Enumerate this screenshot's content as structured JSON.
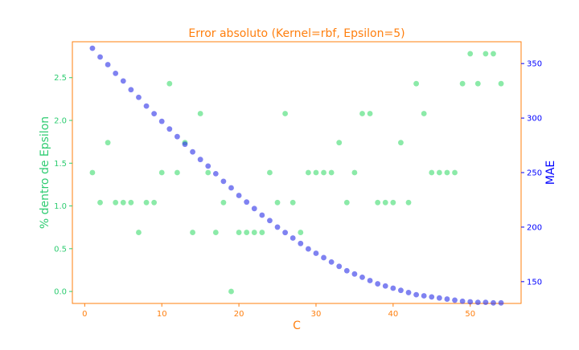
{
  "chart_data": {
    "type": "scatter",
    "title": "Error absoluto (Kernel=rbf, Epsilon=5)",
    "xlabel": "C",
    "ylabel_left": "% dentro de Epsilon",
    "ylabel_right": "MAE",
    "xlim": [
      -1.6,
      56.6
    ],
    "ylim_left": [
      -0.14,
      2.92
    ],
    "ylim_right": [
      130,
      370
    ],
    "x_ticks": [
      0,
      10,
      20,
      30,
      40,
      50
    ],
    "y_left_ticks": [
      "0.0",
      "0.5",
      "1.0",
      "1.5",
      "2.0",
      "2.5"
    ],
    "y_right_ticks": [
      150,
      200,
      250,
      300,
      350
    ],
    "colors": {
      "frame": "#ff7f0e",
      "left_axis": "#2ecc71",
      "right_axis": "#0000ff",
      "pct_points": "#3ddc6e",
      "mae_points": "#2a2ee8"
    },
    "series": [
      {
        "axis": "left",
        "x": [
          1,
          2,
          3,
          4,
          5,
          6,
          7,
          8,
          9,
          10,
          11,
          12,
          13,
          14,
          15,
          16,
          17,
          18,
          19,
          20,
          21,
          22,
          23,
          24,
          25,
          26,
          27,
          28,
          29,
          30,
          31,
          32,
          33,
          34,
          35,
          36,
          37,
          38,
          39,
          40,
          41,
          42,
          43,
          44,
          45,
          46,
          47,
          48,
          49,
          50,
          51,
          52,
          53,
          54
        ],
        "values": [
          1.39,
          1.04,
          1.74,
          1.04,
          1.04,
          1.04,
          0.69,
          1.04,
          1.04,
          1.39,
          2.43,
          1.39,
          1.74,
          0.69,
          2.08,
          1.39,
          0.69,
          1.04,
          0.0,
          0.69,
          0.69,
          0.69,
          0.69,
          1.39,
          1.04,
          2.08,
          1.04,
          0.69,
          1.39,
          1.39,
          1.39,
          1.39,
          1.74,
          1.04,
          1.39,
          2.08,
          2.08,
          1.04,
          1.04,
          1.04,
          1.74,
          1.04,
          2.43,
          2.08,
          1.39,
          1.39,
          1.39,
          1.39,
          2.43,
          2.78,
          2.43,
          2.78,
          2.78,
          2.43
        ]
      },
      {
        "axis": "right",
        "x": [
          1,
          2,
          3,
          4,
          5,
          6,
          7,
          8,
          9,
          10,
          11,
          12,
          13,
          14,
          15,
          16,
          17,
          18,
          19,
          20,
          21,
          22,
          23,
          24,
          25,
          26,
          27,
          28,
          29,
          30,
          31,
          32,
          33,
          34,
          35,
          36,
          37,
          38,
          39,
          40,
          41,
          42,
          43,
          44,
          45,
          46,
          47,
          48,
          49,
          50,
          51,
          52,
          53,
          54
        ],
        "values": [
          364,
          356,
          349,
          341,
          334,
          326,
          319,
          311,
          304,
          297,
          290,
          283,
          276,
          269,
          262,
          256,
          249,
          242,
          236,
          229,
          223,
          217,
          211,
          206,
          200,
          195,
          190,
          185,
          180,
          176,
          172,
          168,
          164,
          160,
          157,
          154,
          151,
          148,
          146,
          144,
          142,
          140,
          138,
          137,
          136,
          135,
          134,
          133,
          132,
          131.5,
          131,
          131,
          130.5,
          130.5
        ]
      }
    ]
  }
}
